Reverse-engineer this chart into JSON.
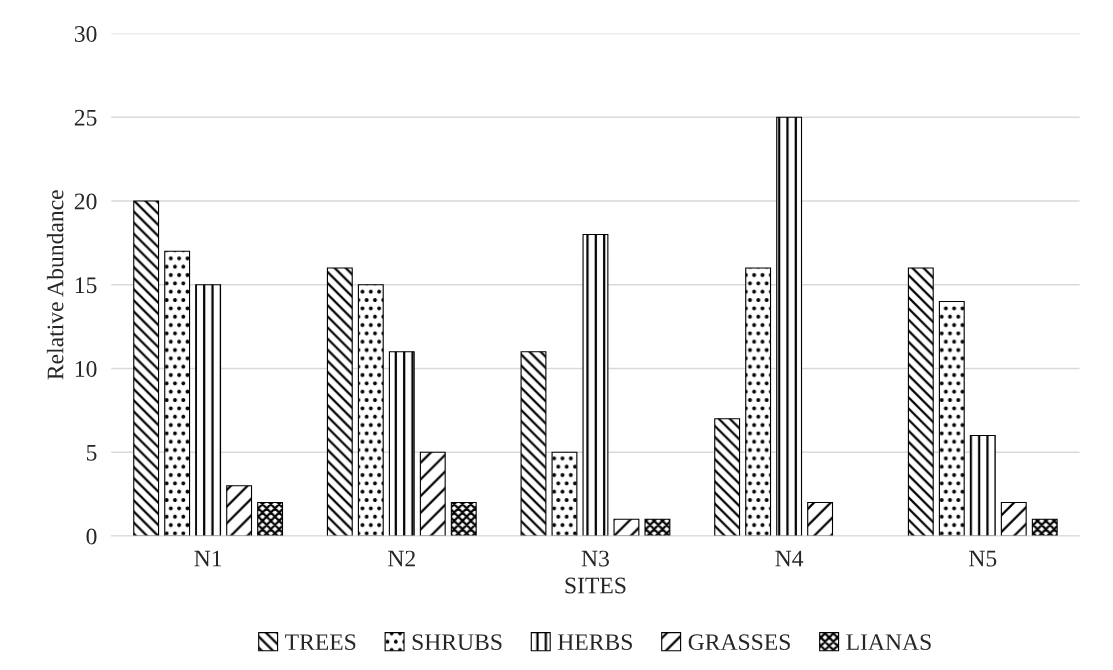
{
  "chart_data": {
    "type": "bar",
    "xlabel": "SITES",
    "ylabel": "Relative Abundance",
    "categories": [
      "N1",
      "N2",
      "N3",
      "N4",
      "N5"
    ],
    "series": [
      {
        "name": "TREES",
        "color": "#000000",
        "values": [
          20,
          16,
          11,
          7,
          16
        ]
      },
      {
        "name": "SHRUBS",
        "color": "#000000",
        "values": [
          17,
          15,
          5,
          16,
          14
        ]
      },
      {
        "name": "HERBS",
        "color": "#000000",
        "values": [
          15,
          11,
          18,
          25,
          6
        ]
      },
      {
        "name": "GRASSES",
        "color": "#000000",
        "values": [
          3,
          5,
          1,
          2,
          2
        ]
      },
      {
        "name": "LIANAS",
        "color": "#000000",
        "values": [
          2,
          2,
          1,
          null,
          1
        ]
      }
    ],
    "ylim": [
      0,
      30
    ],
    "yticks": [
      0,
      5,
      10,
      15,
      20,
      25,
      30
    ],
    "grid": "y",
    "legend": "bottom"
  }
}
